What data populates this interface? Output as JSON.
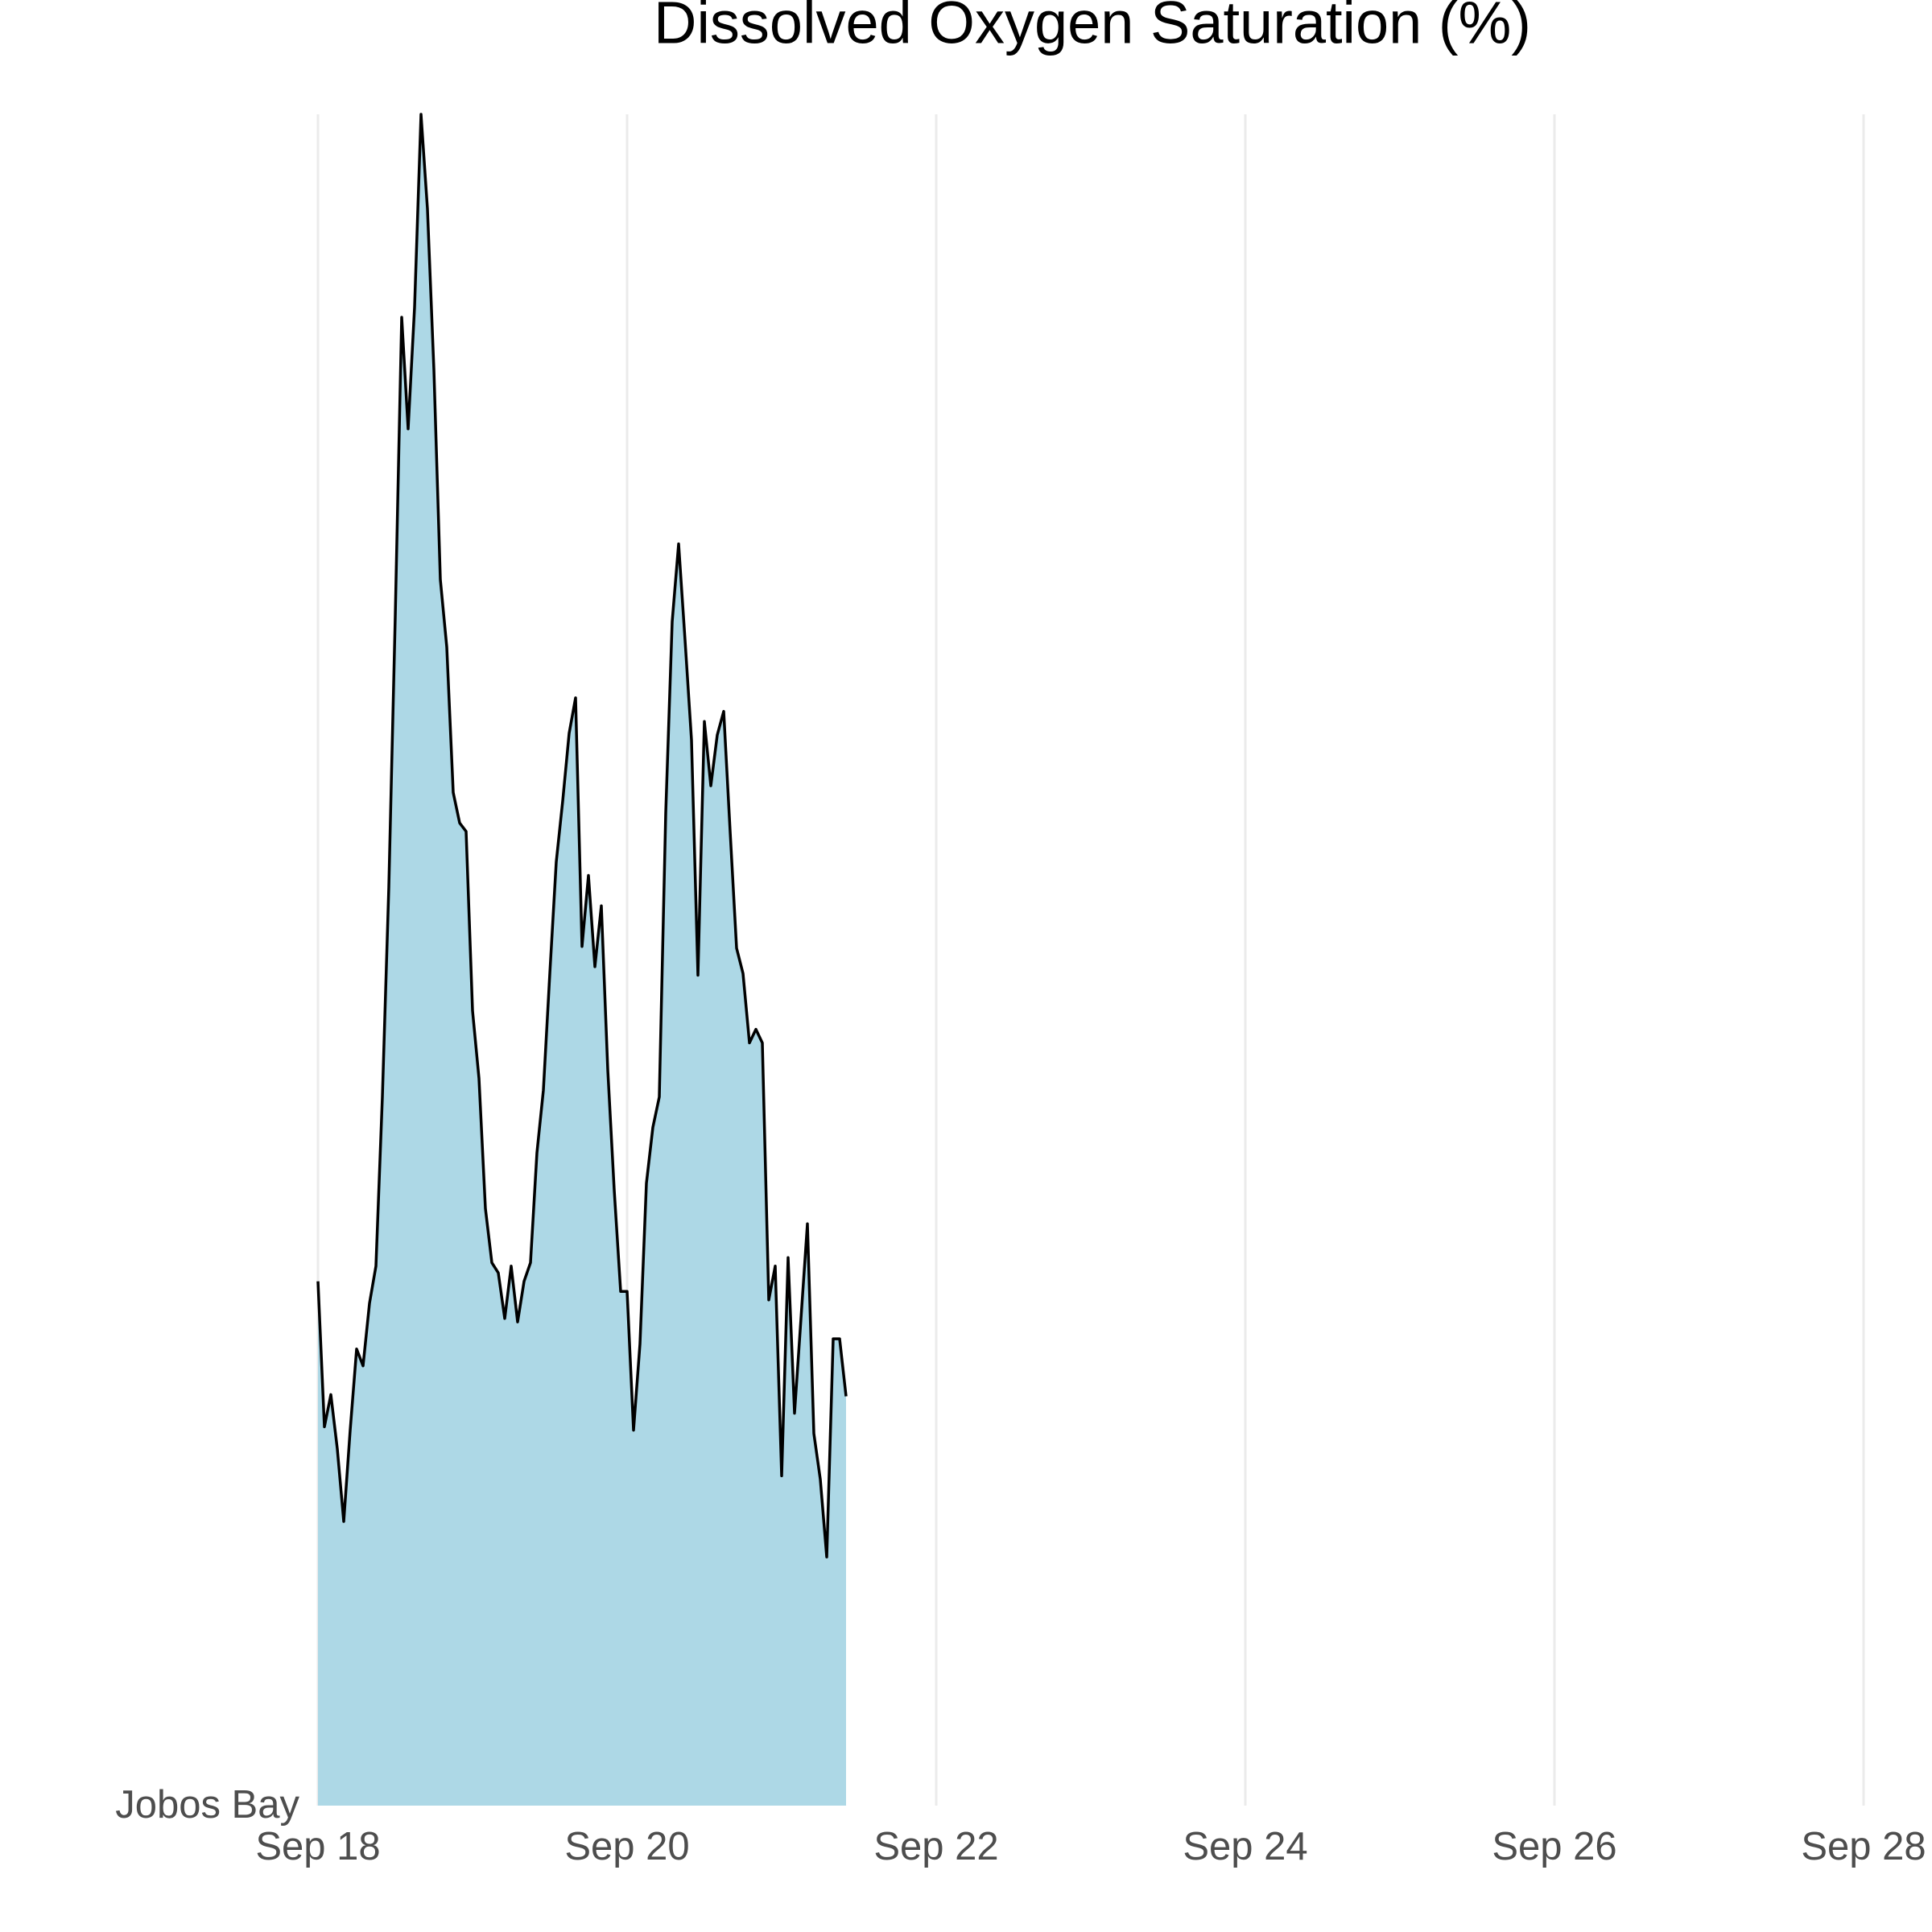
{
  "chart_data": {
    "type": "area",
    "title": "Dissolved Oxygen Saturation (%)",
    "x": [
      0,
      1,
      2,
      3,
      4,
      5,
      6,
      7,
      8,
      9,
      10,
      11,
      12,
      13,
      14,
      15,
      16,
      17,
      18,
      19,
      20,
      21,
      22,
      23,
      24,
      25,
      26,
      27,
      28,
      29,
      30,
      31,
      32,
      33,
      34,
      35,
      36,
      37,
      38,
      39,
      40,
      41,
      42,
      43,
      44,
      45,
      46,
      47,
      48,
      49,
      50,
      51,
      52,
      53,
      54,
      55,
      56,
      57,
      58,
      59,
      60,
      61,
      62,
      63,
      64,
      65,
      66,
      67,
      68,
      69,
      70,
      71,
      72,
      73,
      74,
      75,
      76,
      77,
      78,
      79,
      80,
      81,
      82
    ],
    "series": [
      {
        "name": "Jobos Bay",
        "color": "#add8e6",
        "line_color": "#000000",
        "values": [
          31.0,
          22.4,
          24.3,
          21.1,
          16.8,
          22.2,
          27.0,
          26.0,
          29.7,
          31.9,
          41.9,
          54.3,
          70.3,
          88.0,
          81.4,
          88.6,
          100,
          94.4,
          84.9,
          72.5,
          68.5,
          59.9,
          58.1,
          57.6,
          47.0,
          43.0,
          35.3,
          32.1,
          31.5,
          28.8,
          31.9,
          28.6,
          31.0,
          32.1,
          38.6,
          42.3,
          49.2,
          55.8,
          59.4,
          63.4,
          65.5,
          50.8,
          55.0,
          49.6,
          53.2,
          43.5,
          36.4,
          30.4,
          30.4,
          22.2,
          27.3,
          36.8,
          40.1,
          41.9,
          58.7,
          70.0,
          74.6,
          68.9,
          63.0,
          49.1,
          64.1,
          60.3,
          63.3,
          64.7,
          57.6,
          50.7,
          49.2,
          45.1,
          45.9,
          45.1,
          29.9,
          31.9,
          19.5,
          32.4,
          23.2,
          28.8,
          34.4,
          22.0,
          19.3,
          14.7,
          27.6,
          27.6,
          24.2
        ]
      }
    ],
    "xlim": [
      0,
      240
    ],
    "xticks": [
      {
        "value": 0,
        "label": "Sep 18"
      },
      {
        "value": 48,
        "label": "Sep 20"
      },
      {
        "value": 96,
        "label": "Sep 22"
      },
      {
        "value": 144,
        "label": "Sep 24"
      },
      {
        "value": 192,
        "label": "Sep 26"
      },
      {
        "value": 240,
        "label": "Sep 28"
      }
    ],
    "ylim": [
      0,
      100
    ],
    "grid": true
  }
}
